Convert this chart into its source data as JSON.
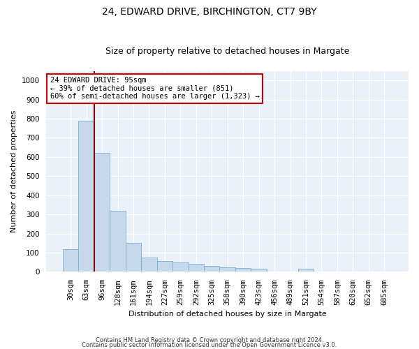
{
  "title1": "24, EDWARD DRIVE, BIRCHINGTON, CT7 9BY",
  "title2": "Size of property relative to detached houses in Margate",
  "xlabel": "Distribution of detached houses by size in Margate",
  "ylabel": "Number of detached properties",
  "categories": [
    "30sqm",
    "63sqm",
    "96sqm",
    "128sqm",
    "161sqm",
    "194sqm",
    "227sqm",
    "259sqm",
    "292sqm",
    "325sqm",
    "358sqm",
    "390sqm",
    "423sqm",
    "456sqm",
    "489sqm",
    "521sqm",
    "554sqm",
    "587sqm",
    "620sqm",
    "652sqm",
    "685sqm"
  ],
  "values": [
    120,
    790,
    620,
    320,
    150,
    75,
    55,
    50,
    40,
    30,
    25,
    20,
    18,
    0,
    0,
    18,
    0,
    0,
    0,
    0,
    0
  ],
  "bar_color": "#c5d8ec",
  "bar_edge_color": "#7aafd4",
  "vline_color": "#8b0000",
  "vline_x_index": 2,
  "annotation_text": "24 EDWARD DRIVE: 95sqm\n← 39% of detached houses are smaller (851)\n60% of semi-detached houses are larger (1,323) →",
  "annotation_box_color": "white",
  "annotation_box_edge_color": "#cc0000",
  "footer1": "Contains HM Land Registry data © Crown copyright and database right 2024.",
  "footer2": "Contains public sector information licensed under the Open Government Licence v3.0.",
  "ylim": [
    0,
    1050
  ],
  "yticks": [
    0,
    100,
    200,
    300,
    400,
    500,
    600,
    700,
    800,
    900,
    1000
  ],
  "bg_color": "#eaf1f8",
  "fig_bg_color": "#ffffff",
  "title1_fontsize": 10,
  "title2_fontsize": 9,
  "ylabel_fontsize": 8,
  "xlabel_fontsize": 8,
  "tick_fontsize": 7.5,
  "annot_fontsize": 7.5,
  "footer_fontsize": 6
}
